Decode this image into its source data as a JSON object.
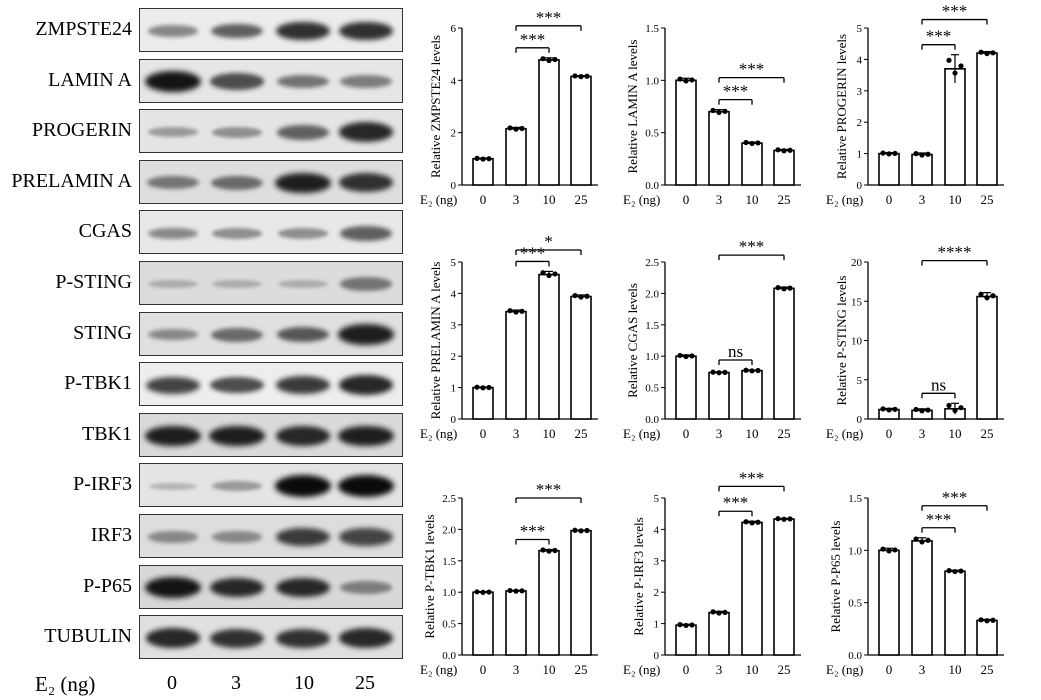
{
  "blot": {
    "rows": [
      {
        "label": "ZMPSTE24",
        "intensities": [
          0.35,
          0.55,
          0.8,
          0.8
        ],
        "bg": "#ececec"
      },
      {
        "label": "LAMIN A",
        "intensities": [
          0.95,
          0.65,
          0.45,
          0.4
        ],
        "bg": "#e6e6e6"
      },
      {
        "label": "PROGERIN",
        "intensities": [
          0.25,
          0.3,
          0.55,
          0.85
        ],
        "bg": "#e4e4e4"
      },
      {
        "label": "PRELAMIN A",
        "intensities": [
          0.45,
          0.5,
          0.9,
          0.8
        ],
        "bg": "#dedede"
      },
      {
        "label": "CGAS",
        "intensities": [
          0.35,
          0.3,
          0.3,
          0.55
        ],
        "bg": "#e8e8e8"
      },
      {
        "label": "P-STING",
        "intensities": [
          0.15,
          0.15,
          0.15,
          0.45
        ],
        "bg": "#dcdcdc"
      },
      {
        "label": "STING",
        "intensities": [
          0.35,
          0.5,
          0.6,
          0.9
        ],
        "bg": "#e0e0e0"
      },
      {
        "label": "P-TBK1",
        "intensities": [
          0.7,
          0.65,
          0.75,
          0.85
        ],
        "bg": "#eeeeee"
      },
      {
        "label": "TBK1",
        "intensities": [
          0.9,
          0.9,
          0.85,
          0.9
        ],
        "bg": "#dadada"
      },
      {
        "label": "P-IRF3",
        "intensities": [
          0.1,
          0.25,
          1.0,
          1.0
        ],
        "bg": "#e4e4e4"
      },
      {
        "label": "IRF3",
        "intensities": [
          0.35,
          0.35,
          0.75,
          0.7
        ],
        "bg": "#dddddd"
      },
      {
        "label": "P-P65",
        "intensities": [
          0.95,
          0.85,
          0.85,
          0.4
        ],
        "bg": "#d8d8d8"
      },
      {
        "label": "TUBULIN",
        "intensities": [
          0.85,
          0.8,
          0.8,
          0.85
        ],
        "bg": "#e0e0e0"
      }
    ],
    "axis_label": "E₂ (ng)",
    "lanes": [
      "0",
      "3",
      "10",
      "25"
    ]
  },
  "chart_data": [
    {
      "type": "bar",
      "categories": [
        "0",
        "3",
        "10",
        "25"
      ],
      "values": [
        1.0,
        2.15,
        4.78,
        4.15
      ],
      "errors": [
        0.03,
        0.05,
        0.08,
        0.03
      ],
      "ylabel": "Relative ZMPSTE24 levels",
      "ylim": [
        0,
        6
      ],
      "yticks": [
        "0",
        "2",
        "4",
        "6"
      ],
      "xlabel": "E₂ (ng)",
      "sig": [
        {
          "from": 1,
          "to": 2,
          "label": "***"
        },
        {
          "from": 1,
          "to": 3,
          "label": "***"
        }
      ]
    },
    {
      "type": "bar",
      "categories": [
        "0",
        "3",
        "10",
        "25"
      ],
      "values": [
        1.0,
        0.7,
        0.4,
        0.33
      ],
      "errors": [
        0.02,
        0.02,
        0.01,
        0.01
      ],
      "ylabel": "Relative LAMIN A levels",
      "ylim": [
        0,
        1.5
      ],
      "yticks": [
        "0.0",
        "0.5",
        "1.0",
        "1.5"
      ],
      "xlabel": "E₂ (ng)",
      "sig": [
        {
          "from": 1,
          "to": 2,
          "label": "***"
        },
        {
          "from": 1,
          "to": 3,
          "label": "***"
        }
      ]
    },
    {
      "type": "bar",
      "categories": [
        "0",
        "3",
        "10",
        "25"
      ],
      "values": [
        1.0,
        0.97,
        3.7,
        4.2
      ],
      "errors": [
        0.03,
        0.05,
        0.45,
        0.05
      ],
      "ylabel": "Relative PROGERIN levels",
      "ylim": [
        0,
        5
      ],
      "yticks": [
        "0",
        "1",
        "2",
        "3",
        "4",
        "5"
      ],
      "xlabel": "E₂ (ng)",
      "sig": [
        {
          "from": 1,
          "to": 2,
          "label": "***"
        },
        {
          "from": 1,
          "to": 3,
          "label": "***"
        }
      ]
    },
    {
      "type": "bar",
      "categories": [
        "0",
        "3",
        "10",
        "25"
      ],
      "values": [
        1.0,
        3.42,
        4.6,
        3.9
      ],
      "errors": [
        0.02,
        0.05,
        0.1,
        0.05
      ],
      "ylabel": "Relative PRELAMIN A levels",
      "ylim": [
        0,
        5
      ],
      "yticks": [
        "0",
        "1",
        "2",
        "3",
        "4",
        "5"
      ],
      "xlabel": "E₂ (ng)",
      "sig": [
        {
          "from": 1,
          "to": 2,
          "label": "***"
        },
        {
          "from": 1,
          "to": 3,
          "label": "*"
        }
      ]
    },
    {
      "type": "bar",
      "categories": [
        "0",
        "3",
        "10",
        "25"
      ],
      "values": [
        1.0,
        0.74,
        0.77,
        2.08
      ],
      "errors": [
        0.02,
        0.01,
        0.01,
        0.02
      ],
      "ylabel": "Relative CGAS levels",
      "ylim": [
        0,
        2.5
      ],
      "yticks": [
        "0.0",
        "0.5",
        "1.0",
        "1.5",
        "2.0",
        "2.5"
      ],
      "xlabel": "E₂ (ng)",
      "sig": [
        {
          "from": 1,
          "to": 2,
          "label": "ns"
        },
        {
          "from": 1,
          "to": 3,
          "label": "***"
        }
      ]
    },
    {
      "type": "bar",
      "categories": [
        "0",
        "3",
        "10",
        "25"
      ],
      "values": [
        1.2,
        1.1,
        1.3,
        15.6
      ],
      "errors": [
        0.15,
        0.2,
        0.7,
        0.5
      ],
      "ylabel": "Relative P-STING levels",
      "ylim": [
        0,
        20
      ],
      "yticks": [
        "0",
        "5",
        "10",
        "15",
        "20"
      ],
      "xlabel": "E₂ (ng)",
      "sig": [
        {
          "from": 1,
          "to": 2,
          "label": "ns"
        },
        {
          "from": 1,
          "to": 3,
          "label": "****"
        }
      ]
    },
    {
      "type": "bar",
      "categories": [
        "0",
        "3",
        "10",
        "25"
      ],
      "values": [
        1.0,
        1.02,
        1.66,
        1.98
      ],
      "errors": [
        0.01,
        0.01,
        0.02,
        0.01
      ],
      "ylabel": "Relative P-TBK1 levels",
      "ylim": [
        0,
        2.5
      ],
      "yticks": [
        "0.0",
        "0.5",
        "1.0",
        "1.5",
        "2.0",
        "2.5"
      ],
      "xlabel": "E₂ (ng)",
      "sig": [
        {
          "from": 1,
          "to": 2,
          "label": "***"
        },
        {
          "from": 1,
          "to": 3,
          "label": "***"
        }
      ]
    },
    {
      "type": "bar",
      "categories": [
        "0",
        "3",
        "10",
        "25"
      ],
      "values": [
        0.95,
        1.35,
        4.22,
        4.33
      ],
      "errors": [
        0.03,
        0.04,
        0.04,
        0.02
      ],
      "ylabel": "Relative P-IRF3 levels",
      "ylim": [
        0,
        5
      ],
      "yticks": [
        "0",
        "1",
        "2",
        "3",
        "4",
        "5"
      ],
      "xlabel": "E₂ (ng)",
      "sig": [
        {
          "from": 1,
          "to": 2,
          "label": "***"
        },
        {
          "from": 1,
          "to": 3,
          "label": "***"
        }
      ]
    },
    {
      "type": "bar",
      "categories": [
        "0",
        "3",
        "10",
        "25"
      ],
      "values": [
        1.0,
        1.09,
        0.8,
        0.33
      ],
      "errors": [
        0.02,
        0.03,
        0.01,
        0.01
      ],
      "ylabel": "Relative P-P65 levels",
      "ylim": [
        0,
        1.5
      ],
      "yticks": [
        "0.0",
        "0.5",
        "1.0",
        "1.5"
      ],
      "xlabel": "E₂ (ng)",
      "sig": [
        {
          "from": 1,
          "to": 2,
          "label": "***"
        },
        {
          "from": 1,
          "to": 3,
          "label": "***"
        }
      ]
    }
  ]
}
